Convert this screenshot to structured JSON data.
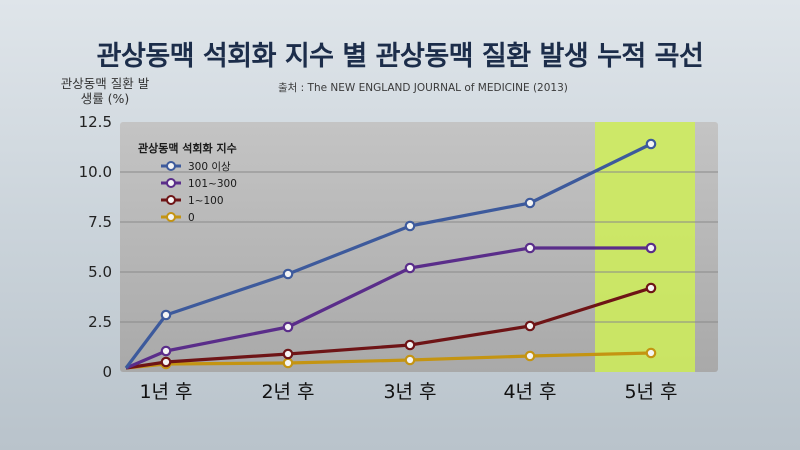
{
  "title": "관상동맥 석회화 지수 별 관상동맥 질환 발생 누적 곡선",
  "source": "출처 : The NEW ENGLAND JOURNAL of MEDICINE (2013)",
  "chart_data": {
    "type": "line",
    "ylabel": "관상동맥 질환 발생률 (%)",
    "ylim": [
      0,
      12.5
    ],
    "y_ticks": [
      "0",
      "2.5",
      "5.0",
      "7.5",
      "10.0",
      "12.5"
    ],
    "categories": [
      "1년 후",
      "2년 후",
      "3년 후",
      "4년 후",
      "5년 후"
    ],
    "origin": 0.2,
    "legend_title": "관상동맥 석회화 지수",
    "legend_position": "top-left",
    "highlight_category": "5년 후",
    "highlight_color": "#cfee58",
    "grid": true,
    "series": [
      {
        "name": "300 이상",
        "color": "#3d5a9c",
        "values": [
          2.85,
          4.9,
          7.3,
          8.45,
          11.4
        ]
      },
      {
        "name": "101~300",
        "color": "#5a2d8a",
        "values": [
          1.05,
          2.25,
          5.2,
          6.2,
          6.2
        ]
      },
      {
        "name": "1~100",
        "color": "#6e1416",
        "values": [
          0.5,
          0.9,
          1.35,
          2.3,
          4.2
        ]
      },
      {
        "name": "0",
        "color": "#c49412",
        "values": [
          0.4,
          0.45,
          0.6,
          0.8,
          0.95
        ]
      }
    ]
  }
}
